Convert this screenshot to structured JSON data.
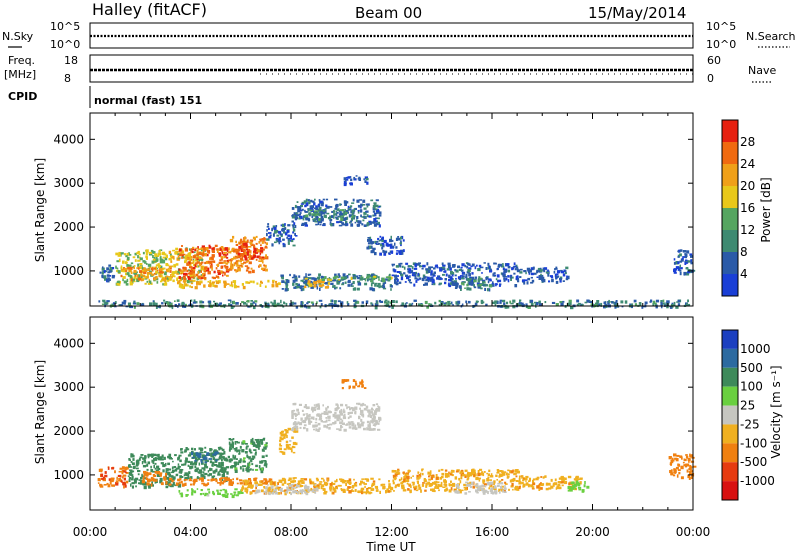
{
  "header": {
    "station": "Halley (fitACF)",
    "beam": "Beam 00",
    "date": "15/May/2014"
  },
  "top_panels": {
    "noise": {
      "left_label": "N.Sky",
      "right_label": "N.Search",
      "left_ticks": [
        "10^5",
        "10^0"
      ],
      "right_ticks": [
        "10^5",
        "10^0"
      ]
    },
    "freq": {
      "left_label_1": "Freq.",
      "left_label_2": "[MHz]",
      "left_ticks": [
        "18",
        "8"
      ],
      "right_label": "Nave",
      "right_ticks": [
        "60",
        "0"
      ]
    },
    "cpid": {
      "label": "CPID",
      "text": "normal (fast) 151"
    }
  },
  "colors": {
    "power_scale": [
      "#1a3fd6",
      "#2a5aa8",
      "#3e8a72",
      "#55a560",
      "#e8c81a",
      "#f0a018",
      "#f06a10",
      "#e62010"
    ],
    "velocity_scale": [
      "#1b3fc0",
      "#2c6aa0",
      "#3e8a5a",
      "#6ad040",
      "#c6c6c0",
      "#f0b020",
      "#f08010",
      "#e63a10",
      "#d81010"
    ]
  },
  "chart_data": [
    {
      "type": "heatmap",
      "name": "power",
      "xlabel": "",
      "ylabel": "Slant Range [km]",
      "xlim": [
        0,
        24
      ],
      "ylim": [
        200,
        4600
      ],
      "yticks": [
        1000,
        2000,
        3000,
        4000
      ],
      "colorbar": {
        "label": "Power [dB]",
        "ticks": [
          "4",
          "8",
          "12",
          "16",
          "20",
          "24",
          "28"
        ],
        "range": [
          0,
          32
        ]
      },
      "regions": [
        {
          "t0": 0.3,
          "t1": 1.0,
          "r0": 800,
          "r1": 1150,
          "value": 6
        },
        {
          "t0": 1.0,
          "t1": 3.0,
          "r0": 700,
          "r1": 1500,
          "value": 16
        },
        {
          "t0": 1.2,
          "t1": 3.2,
          "r0": 800,
          "r1": 1100,
          "value": 22
        },
        {
          "t0": 3.0,
          "t1": 4.5,
          "r0": 750,
          "r1": 1550,
          "value": 18
        },
        {
          "t0": 3.5,
          "t1": 5.5,
          "r0": 850,
          "r1": 1600,
          "value": 26
        },
        {
          "t0": 5.5,
          "t1": 7.0,
          "r0": 1000,
          "r1": 1800,
          "value": 24
        },
        {
          "t0": 5.8,
          "t1": 6.8,
          "r0": 1300,
          "r1": 1650,
          "value": 29
        },
        {
          "t0": 7.0,
          "t1": 8.2,
          "r0": 1600,
          "r1": 2100,
          "value": 6
        },
        {
          "t0": 8.0,
          "t1": 11.5,
          "r0": 2050,
          "r1": 2650,
          "value": 7
        },
        {
          "t0": 8.5,
          "t1": 10.5,
          "r0": 2200,
          "r1": 2450,
          "value": 10
        },
        {
          "t0": 3.5,
          "t1": 7.5,
          "r0": 650,
          "r1": 800,
          "value": 20
        },
        {
          "t0": 7.5,
          "t1": 12.0,
          "r0": 600,
          "r1": 950,
          "value": 8
        },
        {
          "t0": 8.5,
          "t1": 9.5,
          "r0": 650,
          "r1": 850,
          "value": 20
        },
        {
          "t0": 9.0,
          "t1": 12.0,
          "r0": 800,
          "r1": 900,
          "value": 14
        },
        {
          "t0": 12.0,
          "t1": 17.0,
          "r0": 700,
          "r1": 1200,
          "value": 5
        },
        {
          "t0": 14.5,
          "t1": 16.0,
          "r0": 600,
          "r1": 850,
          "value": 10
        },
        {
          "t0": 17.0,
          "t1": 19.0,
          "r0": 750,
          "r1": 1100,
          "value": 5
        },
        {
          "t0": 10.0,
          "t1": 11.0,
          "r0": 3000,
          "r1": 3200,
          "value": 5
        },
        {
          "t0": 11.0,
          "t1": 12.5,
          "r0": 1400,
          "r1": 1800,
          "value": 5
        },
        {
          "t0": 23.2,
          "t1": 24.0,
          "r0": 950,
          "r1": 1500,
          "value": 6
        },
        {
          "t0": 0.3,
          "t1": 24.0,
          "r0": 200,
          "r1": 350,
          "value": 9
        }
      ]
    },
    {
      "type": "heatmap",
      "name": "velocity",
      "xlabel": "Time UT",
      "ylabel": "Slant Range [km]",
      "xlim": [
        0,
        24
      ],
      "ylim": [
        200,
        4600
      ],
      "xticks": [
        "00:00",
        "04:00",
        "08:00",
        "12:00",
        "16:00",
        "20:00",
        "00:00"
      ],
      "yticks": [
        1000,
        2000,
        3000,
        4000
      ],
      "colorbar": {
        "label": "Velocity [m s⁻¹]",
        "ticks": [
          "1000",
          "500",
          "100",
          "25",
          "-25",
          "-100",
          "-500",
          "-1000"
        ]
      },
      "regions": [
        {
          "t0": 0.3,
          "t1": 1.5,
          "r0": 750,
          "r1": 1200,
          "value": -400
        },
        {
          "t0": 1.5,
          "t1": 3.5,
          "r0": 750,
          "r1": 1500,
          "value": 300
        },
        {
          "t0": 2.0,
          "t1": 3.0,
          "r0": 800,
          "r1": 1100,
          "value": -200
        },
        {
          "t0": 3.5,
          "t1": 5.5,
          "r0": 900,
          "r1": 1650,
          "value": 200
        },
        {
          "t0": 4.0,
          "t1": 5.0,
          "r0": 1300,
          "r1": 1550,
          "value": 700
        },
        {
          "t0": 5.5,
          "t1": 7.0,
          "r0": 1100,
          "r1": 1850,
          "value": 150
        },
        {
          "t0": 3.0,
          "t1": 7.5,
          "r0": 800,
          "r1": 950,
          "value": -200
        },
        {
          "t0": 7.5,
          "t1": 8.2,
          "r0": 1500,
          "r1": 2100,
          "value": -60
        },
        {
          "t0": 8.0,
          "t1": 11.5,
          "r0": 2050,
          "r1": 2650,
          "value": 0
        },
        {
          "t0": 3.5,
          "t1": 6.0,
          "r0": 550,
          "r1": 700,
          "value": 60
        },
        {
          "t0": 6.0,
          "t1": 12.0,
          "r0": 600,
          "r1": 950,
          "value": -80
        },
        {
          "t0": 6.5,
          "t1": 9.0,
          "r0": 600,
          "r1": 800,
          "value": 0
        },
        {
          "t0": 12.0,
          "t1": 17.0,
          "r0": 650,
          "r1": 1150,
          "value": -80
        },
        {
          "t0": 14.5,
          "t1": 16.5,
          "r0": 600,
          "r1": 850,
          "value": 0
        },
        {
          "t0": 17.0,
          "t1": 19.5,
          "r0": 700,
          "r1": 1000,
          "value": -70
        },
        {
          "t0": 19.0,
          "t1": 19.8,
          "r0": 650,
          "r1": 900,
          "value": 60
        },
        {
          "t0": 10.0,
          "t1": 11.0,
          "r0": 3000,
          "r1": 3200,
          "value": -200
        },
        {
          "t0": 23.0,
          "t1": 24.0,
          "r0": 950,
          "r1": 1500,
          "value": -300
        }
      ]
    }
  ]
}
